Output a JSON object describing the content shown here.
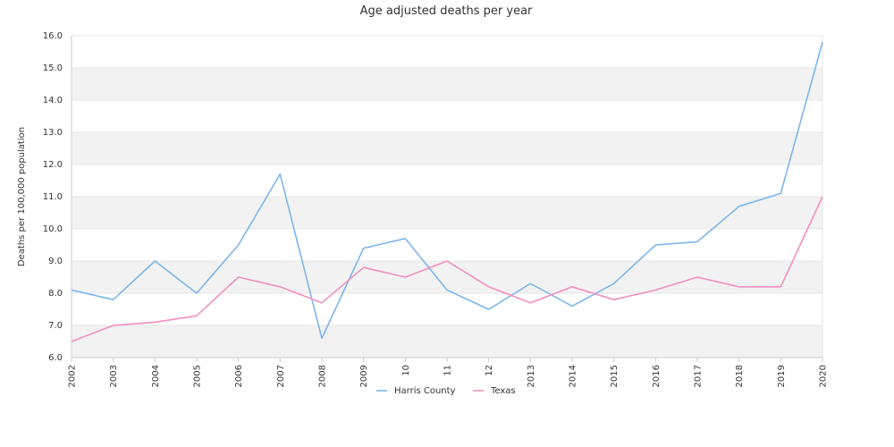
{
  "chart_data": {
    "type": "line",
    "title": "Age adjusted deaths per year",
    "xlabel": "",
    "ylabel": "Deaths per 100,000 population",
    "categories": [
      "2002",
      "2003",
      "2004",
      "2005",
      "2006",
      "2007",
      "2008",
      "2009",
      "10",
      "11",
      "12",
      "2013",
      "2014",
      "2015",
      "2016",
      "2017",
      "2018",
      "2019",
      "2020"
    ],
    "ylim": [
      6.0,
      16.0
    ],
    "yticks": [
      "6.0",
      "7.0",
      "8.0",
      "9.0",
      "10.0",
      "11.0",
      "12.0",
      "13.0",
      "14.0",
      "15.0",
      "16.0"
    ],
    "grid": "alternating horizontal bands",
    "legend_position": "bottom",
    "series": [
      {
        "name": "Harris County",
        "color": "#7cb5ec",
        "values": [
          8.1,
          7.8,
          9.0,
          8.0,
          9.5,
          11.7,
          6.6,
          9.4,
          9.7,
          8.1,
          7.5,
          8.3,
          7.6,
          8.3,
          9.5,
          9.6,
          10.7,
          11.1,
          15.8
        ]
      },
      {
        "name": "Texas",
        "color": "#f28fbf",
        "values": [
          6.5,
          7.0,
          7.1,
          7.3,
          8.5,
          8.2,
          7.7,
          8.8,
          8.5,
          9.0,
          8.2,
          7.7,
          8.2,
          7.8,
          8.1,
          8.5,
          8.2,
          8.2,
          11.0
        ]
      }
    ]
  }
}
